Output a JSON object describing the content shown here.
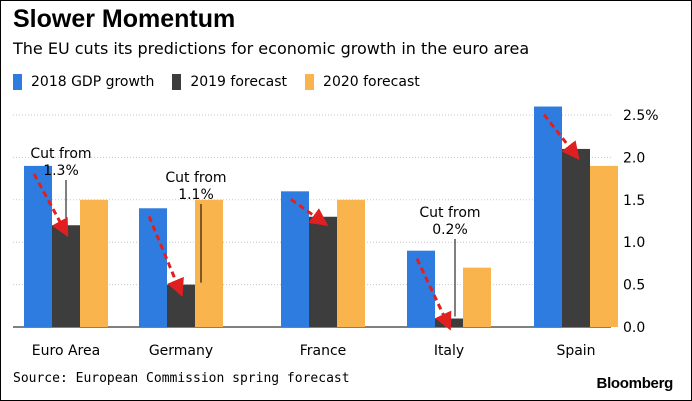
{
  "header": {
    "title": "Slower Momentum",
    "subtitle": "The EU cuts its predictions for economic growth in the euro area"
  },
  "footer": {
    "source": "Source: European Commission spring forecast",
    "brand": "Bloomberg"
  },
  "colors": {
    "series_2018": "#2f7ce0",
    "series_2019": "#3d3d3d",
    "series_2020": "#f9b44d",
    "arrow": "#e02020",
    "grid": "#c8c8c8"
  },
  "chart_data": {
    "type": "bar",
    "categories": [
      "Euro Area",
      "Germany",
      "France",
      "Italy",
      "Spain"
    ],
    "series": [
      {
        "name": "2018 GDP growth",
        "values": [
          1.9,
          1.4,
          1.6,
          0.9,
          2.6
        ]
      },
      {
        "name": "2019 forecast",
        "values": [
          1.2,
          0.5,
          1.3,
          0.1,
          2.1
        ]
      },
      {
        "name": "2020 forecast",
        "values": [
          1.5,
          1.5,
          1.5,
          0.7,
          1.9
        ]
      }
    ],
    "y_ticks": [
      "0.0",
      "0.5",
      "1.0",
      "1.5",
      "2.0",
      "2.5%"
    ],
    "y_tick_values": [
      0,
      0.5,
      1.0,
      1.5,
      2.0,
      2.5
    ],
    "ylim": [
      0,
      2.5
    ],
    "grid": true,
    "y_axis_side": "right",
    "legend_position": "top-left",
    "annotations": [
      {
        "category": "Euro Area",
        "text": [
          "Cut from",
          "1.3%"
        ],
        "prior_value": 1.3
      },
      {
        "category": "Germany",
        "text": [
          "Cut from",
          "1.1%"
        ],
        "prior_value": 1.1
      },
      {
        "category": "Italy",
        "text": [
          "Cut from",
          "0.2%"
        ],
        "prior_value": 0.2
      }
    ],
    "arrows": [
      {
        "category": "Euro Area",
        "from_series": "2018 GDP growth",
        "to_series": "2019 forecast"
      },
      {
        "category": "Germany",
        "from_series": "2018 GDP growth",
        "to_series": "2019 forecast"
      },
      {
        "category": "France",
        "from_series": "2018 GDP growth",
        "to_series": "2019 forecast"
      },
      {
        "category": "Italy",
        "from_series": "2018 GDP growth",
        "to_series": "2019 forecast"
      },
      {
        "category": "Spain",
        "from_series": "2018 GDP growth",
        "to_series": "2019 forecast"
      }
    ]
  }
}
